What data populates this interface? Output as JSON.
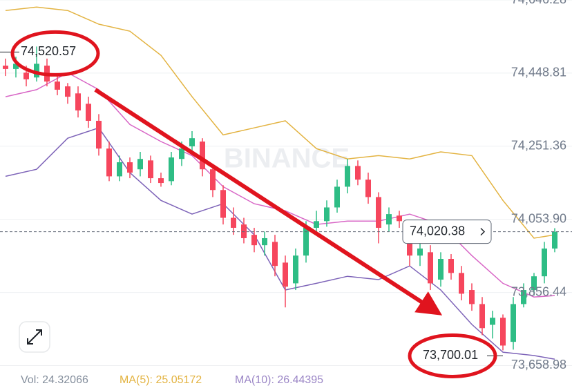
{
  "chart_data": {
    "type": "candlestick",
    "ylim": [
      73630,
      74646.28
    ],
    "yticks": [
      {
        "value": 74646.28,
        "label": "74,646.28"
      },
      {
        "value": 74448.81,
        "label": "74,448.81"
      },
      {
        "value": 74251.36,
        "label": "74,251.36"
      },
      {
        "value": 74053.9,
        "label": "74,053.90"
      },
      {
        "value": 73856.44,
        "label": "73,856.44"
      },
      {
        "value": 73658.98,
        "label": "73,658.98"
      }
    ],
    "grid": true,
    "up_color": "#2ebd85",
    "down_color": "#f6465d",
    "open": [
      74469,
      74460,
      74450,
      74437,
      74469,
      74426,
      74413,
      74394,
      74366,
      74320,
      74245,
      74170,
      74208,
      74189,
      74213,
      74165,
      74157,
      74217,
      74251,
      74264,
      74189,
      74133,
      74058,
      74040,
      74012,
      73984,
      73993,
      73937,
      73881,
      73956,
      74031,
      74049,
      74086,
      74142,
      74198,
      74161,
      74114,
      74040,
      74064,
      74031,
      73956,
      73965,
      73891,
      73947,
      73909,
      73863,
      73825,
      73769,
      73788,
      73723,
      73825,
      73863,
      73900,
      73975
    ],
    "high": [
      74488,
      74493,
      74469,
      74520.57,
      74488,
      74441,
      74422,
      74413,
      74385,
      74338,
      74264,
      74226,
      74221,
      74236,
      74226,
      74180,
      74236,
      74264,
      74292,
      74273,
      74202,
      74146,
      74086,
      74058,
      74031,
      74021,
      74012,
      73956,
      73975,
      74049,
      74077,
      74105,
      74161,
      74217,
      74213,
      74180,
      74127,
      74086,
      74077,
      74045,
      73989,
      73984,
      73965,
      73960,
      73928,
      73881,
      73844,
      73807,
      73797,
      73844,
      73881,
      73909,
      73993,
      74030
    ],
    "low": [
      74441,
      74437,
      74413,
      74426,
      74413,
      74389,
      74366,
      74329,
      74301,
      74226,
      74157,
      74157,
      74165,
      74170,
      74152,
      74142,
      74146,
      74198,
      74239,
      74170,
      74114,
      74040,
      74012,
      73989,
      73965,
      73956,
      73900,
      73816,
      73863,
      73937,
      74012,
      74034,
      74072,
      74124,
      74146,
      74096,
      73989,
      74021,
      74031,
      73928,
      73928,
      73863,
      73872,
      73891,
      73835,
      73807,
      73741,
      73732,
      73700.01,
      73702,
      73816,
      73848,
      73881,
      73965
    ],
    "close": [
      74460,
      74474,
      74432,
      74474,
      74426,
      74404,
      74385,
      74348,
      74320,
      74245,
      74170,
      74208,
      74180,
      74217,
      74165,
      74152,
      74221,
      74245,
      74273,
      74189,
      74133,
      74058,
      74031,
      74003,
      73984,
      74003,
      73928,
      73872,
      73956,
      74031,
      74049,
      74086,
      74142,
      74198,
      74161,
      74114,
      74031,
      74068,
      74049,
      73956,
      73975,
      73881,
      73947,
      73909,
      73853,
      73825,
      73760,
      73788,
      73713,
      73825,
      73863,
      73900,
      73975,
      74020.38
    ],
    "bands": {
      "x": [
        0,
        3,
        6,
        9,
        12,
        15,
        18,
        21,
        24,
        27,
        30,
        33,
        36,
        39,
        42,
        45,
        48,
        51,
        53
      ],
      "upper": [
        74618,
        74627,
        74618,
        74581,
        74562,
        74497,
        74385,
        74282,
        74301,
        74320,
        74245,
        74217,
        74226,
        74217,
        74236,
        74226,
        74105,
        74003,
        74012
      ],
      "middle": [
        74385,
        74404,
        74450,
        74404,
        74310,
        74264,
        74226,
        74142,
        74096,
        74077,
        74040,
        74049,
        74049,
        74068,
        74040,
        73956,
        73881,
        73844,
        73848
      ],
      "lower": [
        74170,
        74189,
        74273,
        74301,
        74180,
        74105,
        74068,
        74096,
        74012,
        73863,
        73881,
        73900,
        73891,
        73928,
        73863,
        73770,
        73695,
        73686,
        73676
      ],
      "colors": {
        "upper": "#e3b341",
        "middle": "#d866c6",
        "lower": "#7d63b8"
      }
    },
    "last_price": {
      "value": 74020.38,
      "label": "74,020.38"
    },
    "annotations": [
      {
        "value": 74520.57,
        "label": "74,520.57"
      },
      {
        "value": 73700.01,
        "label": "73,700.01"
      }
    ],
    "watermark": "BINANCE",
    "footer": [
      "Vol: 24.32066",
      "MA(5): 25.05172",
      "MA(10): 26.44395"
    ],
    "footer_colors": [
      "#848e9c",
      "#e3b341",
      "#9b86c6"
    ]
  }
}
